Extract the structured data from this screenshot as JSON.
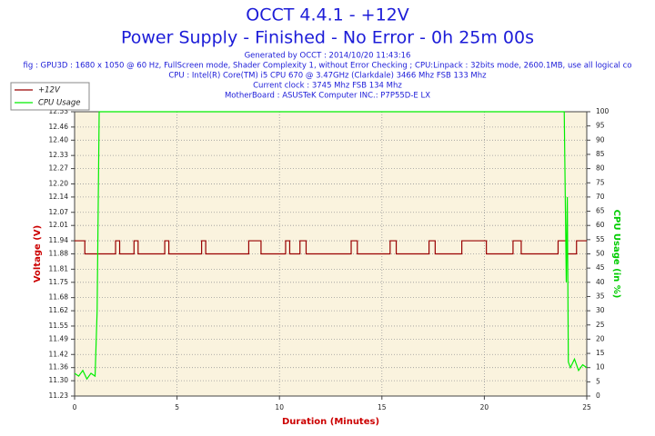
{
  "chart_data": {
    "type": "line",
    "title": "OCCT 4.4.1 - +12V",
    "subtitle": "Power Supply - Finished - No Error - 0h 25m 00s",
    "info_lines": [
      "Generated by OCCT : 2014/10/20 11:43:16",
      "fig : GPU3D : 1680 x 1050 @ 60 Hz, FullScreen mode, Shader Complexity 1, without Error Checking ; CPU:Linpack : 32bits mode, 2600.1MB, use all logical co",
      "CPU : Intel(R) Core(TM) i5 CPU 670 @ 3.47GHz (Clarkdale) 3466 Mhz FSB 133 Mhz",
      "Current clock : 3745 Mhz FSB 134 Mhz",
      "MotherBoard : ASUSTeK Computer INC.: P7P55D-E LX"
    ],
    "xlabel": "Duration (Minutes)",
    "ylabel": "Voltage (V)",
    "y2label": "CPU Usage (in %)",
    "xlim": [
      0,
      25
    ],
    "xticks": [
      0,
      5,
      10,
      15,
      20,
      25
    ],
    "ylim": [
      11.23,
      12.53
    ],
    "yticks": [
      11.23,
      {
        "value": 11.3,
        "label": "11.30"
      },
      11.36,
      11.42,
      11.49,
      11.55,
      11.62,
      11.68,
      11.75,
      11.81,
      11.88,
      11.94,
      12.01,
      12.07,
      12.14,
      {
        "value": 12.2,
        "label": "12.20"
      },
      12.27,
      12.33,
      {
        "value": 12.4,
        "label": "12.40"
      },
      12.46,
      12.53
    ],
    "y2lim": [
      0,
      100
    ],
    "y2ticks": [
      0,
      5,
      10,
      15,
      20,
      25,
      30,
      35,
      40,
      45,
      50,
      55,
      60,
      65,
      70,
      75,
      80,
      85,
      90,
      95,
      100
    ],
    "grid": true,
    "legend": "upper left",
    "series": [
      {
        "name": "+12V",
        "color": "#990000",
        "axis": "y",
        "x": [
          0,
          0.5,
          0.5,
          2.0,
          2.0,
          2.2,
          2.2,
          2.9,
          2.9,
          3.1,
          3.1,
          4.4,
          4.4,
          4.6,
          4.6,
          6.2,
          6.2,
          6.4,
          6.4,
          8.5,
          8.5,
          9.1,
          9.1,
          10.3,
          10.3,
          10.5,
          10.5,
          11.0,
          11.0,
          11.3,
          11.3,
          13.5,
          13.5,
          13.8,
          13.8,
          15.4,
          15.4,
          15.7,
          15.7,
          17.3,
          17.3,
          17.6,
          17.6,
          18.9,
          18.9,
          20.1,
          20.1,
          21.4,
          21.4,
          21.8,
          21.8,
          23.6,
          23.6,
          24.0,
          24.0,
          24.5,
          24.5,
          25
        ],
        "values": [
          11.94,
          11.94,
          11.88,
          11.88,
          11.94,
          11.94,
          11.88,
          11.88,
          11.94,
          11.94,
          11.88,
          11.88,
          11.94,
          11.94,
          11.88,
          11.88,
          11.94,
          11.94,
          11.88,
          11.88,
          11.94,
          11.94,
          11.88,
          11.88,
          11.94,
          11.94,
          11.88,
          11.88,
          11.94,
          11.94,
          11.88,
          11.88,
          11.94,
          11.94,
          11.88,
          11.88,
          11.94,
          11.94,
          11.88,
          11.88,
          11.94,
          11.94,
          11.88,
          11.88,
          11.94,
          11.94,
          11.88,
          11.88,
          11.94,
          11.94,
          11.88,
          11.88,
          11.94,
          11.94,
          11.88,
          11.88,
          11.94,
          11.94
        ]
      },
      {
        "name": "CPU Usage",
        "color": "#00ee00",
        "axis": "y2",
        "x": [
          0,
          0.2,
          0.4,
          0.6,
          0.8,
          1.0,
          1.1,
          1.2,
          23.9,
          24.0,
          24.05,
          24.1,
          24.2,
          24.4,
          24.6,
          24.8,
          25
        ],
        "values": [
          8,
          7,
          9,
          6,
          8,
          7,
          30,
          100,
          100,
          40,
          70,
          12,
          10,
          13,
          9,
          11,
          10
        ]
      }
    ]
  }
}
